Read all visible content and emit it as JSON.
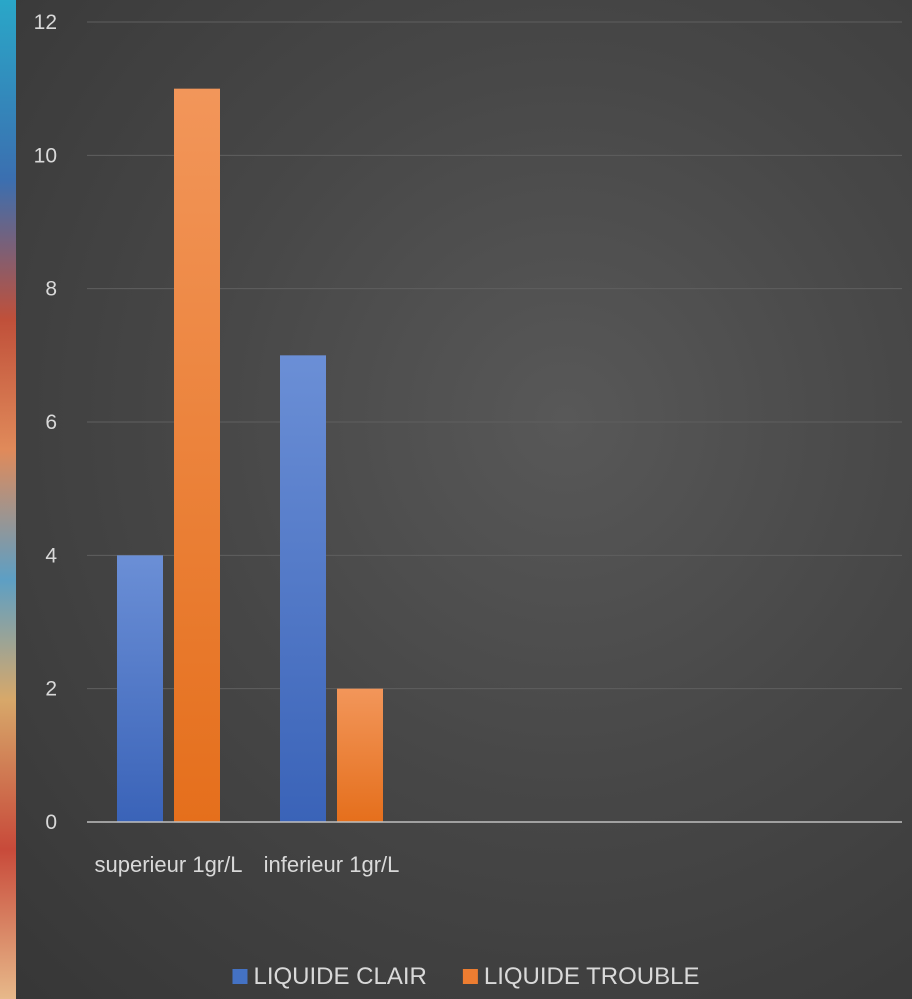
{
  "chart_data": {
    "type": "bar",
    "categories": [
      "superieur 1gr/L",
      "inferieur 1gr/L",
      "",
      "",
      ""
    ],
    "series": [
      {
        "name": "LIQUIDE CLAIR",
        "values": [
          4,
          7,
          null,
          null,
          null
        ],
        "color": "#4472c4"
      },
      {
        "name": "LIQUIDE TROUBLE",
        "values": [
          11,
          2,
          null,
          null,
          null
        ],
        "color": "#ed7d31"
      }
    ],
    "ylim": [
      0,
      12
    ],
    "yticks": [
      0,
      2,
      4,
      6,
      8,
      10,
      12
    ],
    "grid": true,
    "legend": "bottom"
  }
}
